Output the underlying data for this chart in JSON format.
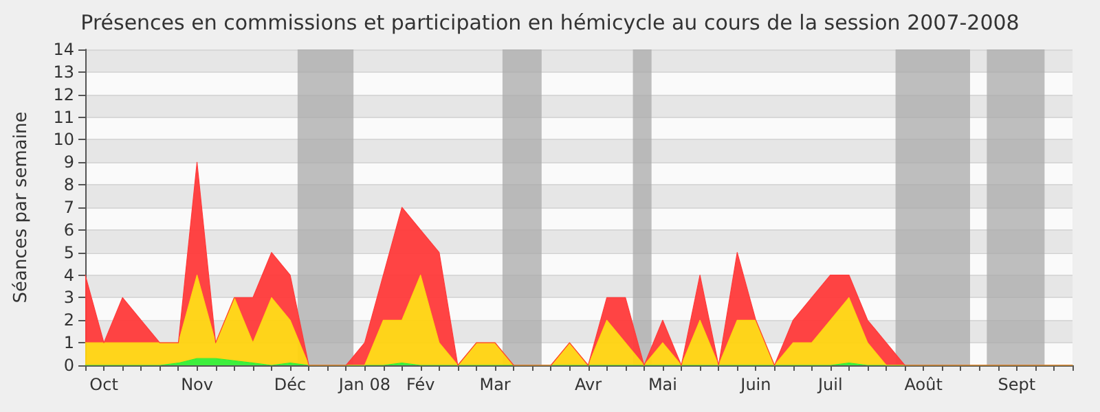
{
  "chart_data": {
    "type": "area",
    "stacked": true,
    "title": "Présences en commissions et participation en hémicycle au cours de la session 2007-2008",
    "ylabel": "Séances par semaine",
    "categories": [
      null,
      "Oct",
      null,
      null,
      null,
      null,
      "Nov",
      null,
      null,
      null,
      null,
      "Déc",
      null,
      null,
      null,
      "Jan 08",
      null,
      null,
      "Fév",
      null,
      null,
      null,
      "Mar",
      null,
      null,
      null,
      null,
      "Avr",
      null,
      null,
      null,
      "Mai",
      null,
      null,
      null,
      null,
      "Juin",
      null,
      null,
      null,
      "Juil",
      null,
      null,
      null,
      null,
      "Août",
      null,
      null,
      null,
      null,
      "Sept",
      null,
      null,
      null
    ],
    "series": [
      {
        "color": "#33ee33",
        "values": [
          0,
          0,
          0,
          0,
          0,
          0.1,
          0.3,
          0.3,
          0.2,
          0.1,
          0,
          0.1,
          0,
          0,
          0,
          0,
          0,
          0.1,
          0,
          0,
          0,
          0,
          0,
          0,
          0,
          0,
          0,
          0,
          0,
          0,
          0,
          0,
          0,
          0,
          0,
          0,
          0,
          0,
          0,
          0,
          0,
          0.1,
          0,
          0,
          0,
          0,
          0,
          0,
          0,
          0,
          0,
          0,
          0,
          0
        ]
      },
      {
        "color": "#ffd30f",
        "values": [
          1,
          1,
          1,
          1,
          1,
          0.9,
          3.7,
          0.7,
          2.8,
          0.9,
          3,
          1.9,
          0,
          0,
          0,
          0,
          2,
          1.9,
          4,
          1,
          0,
          1,
          1,
          0,
          0,
          0,
          1,
          0,
          2,
          1,
          0,
          1,
          0,
          2,
          0,
          2,
          2,
          0,
          1,
          1,
          2,
          2.9,
          1,
          0,
          0,
          0,
          0,
          0,
          0,
          0,
          0,
          0,
          0,
          0
        ]
      },
      {
        "color": "#ff3a3a",
        "values": [
          3,
          0,
          2,
          1,
          0,
          0,
          5,
          0,
          0,
          2,
          2,
          2,
          0,
          0,
          0,
          1,
          2,
          5,
          2,
          4,
          0,
          0,
          0,
          0,
          0,
          0,
          0,
          0,
          1,
          2,
          0,
          1,
          0,
          2,
          0,
          3,
          0,
          0,
          1,
          2,
          2,
          1,
          1,
          1,
          0,
          0,
          0,
          0,
          0,
          0,
          0,
          0,
          0,
          0
        ]
      }
    ],
    "ylim": [
      0,
      14
    ],
    "yticks": [
      0,
      1,
      2,
      3,
      4,
      5,
      6,
      7,
      8,
      9,
      10,
      11,
      12,
      13,
      14
    ],
    "grid": "y",
    "marker": "none"
  }
}
